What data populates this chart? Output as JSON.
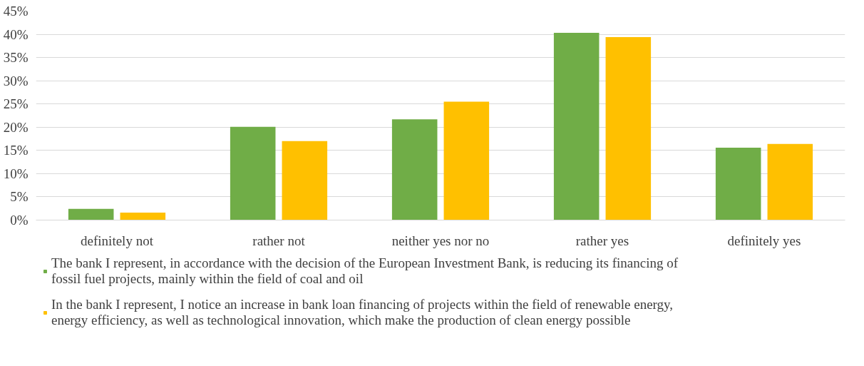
{
  "chart_data": {
    "type": "bar",
    "categories": [
      "definitely not",
      "rather not",
      "neither yes nor no",
      "rather yes",
      "definitely yes"
    ],
    "series": [
      {
        "name": "The bank I represent, in accordance with the decision of the European Investment Bank, is reducing its financing of fossil fuel projects, mainly within the field of coal and oil",
        "color": "#70ad47",
        "values": [
          2.4,
          20.1,
          21.7,
          40.3,
          15.6
        ]
      },
      {
        "name": "In the bank I represent, I notice an increase in bank loan financing of projects within the field of renewable energy, energy efficiency, as well as technological innovation, which make the production of clean energy possible",
        "color": "#ffc000",
        "values": [
          1.6,
          17.0,
          25.5,
          39.4,
          16.4
        ]
      }
    ],
    "ylim": [
      0,
      45
    ],
    "yticks": [
      {
        "value": 0,
        "label": "0%"
      },
      {
        "value": 5,
        "label": "5%"
      },
      {
        "value": 10,
        "label": "10%"
      },
      {
        "value": 15,
        "label": "15%"
      },
      {
        "value": 20,
        "label": "20%"
      },
      {
        "value": 25,
        "label": "25%"
      },
      {
        "value": 30,
        "label": "30%"
      },
      {
        "value": 35,
        "label": "35%"
      },
      {
        "value": 40,
        "label": "40%"
      },
      {
        "value": 45,
        "label": "45%"
      }
    ],
    "grid": "y",
    "legend": "bottom"
  }
}
